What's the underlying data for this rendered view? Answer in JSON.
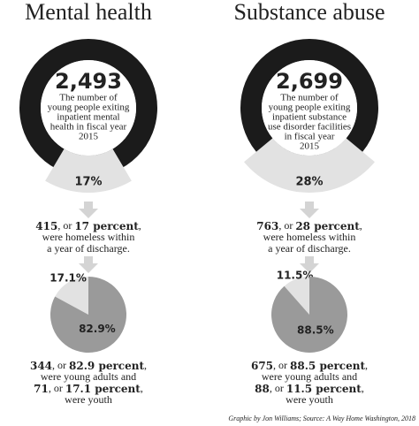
{
  "panels": [
    {
      "title": "Mental health",
      "count": "2,493",
      "description": [
        "The number of",
        "young people exiting",
        "inpatient mental",
        "health in fiscal year",
        "2015"
      ],
      "ring": {
        "type": "donut",
        "values": [
          17
        ],
        "value_labels": [
          "17%"
        ]
      },
      "homeless": [
        [
          {
            "text": "415",
            "bold": true
          },
          {
            "text": ", or ",
            "bold": false
          },
          {
            "text": "17 percent",
            "bold": true
          },
          {
            "text": ",",
            "bold": false
          }
        ],
        [
          {
            "text": "were homeless within",
            "bold": false
          }
        ],
        [
          {
            "text": "a year of discharge.",
            "bold": false
          }
        ]
      ],
      "pie": {
        "type": "pie",
        "values": [
          17.1,
          82.9
        ],
        "value_labels": [
          "17.1%",
          "82.9%"
        ]
      },
      "youth": [
        [
          {
            "text": "344",
            "bold": true
          },
          {
            "text": ", or ",
            "bold": false
          },
          {
            "text": "82.9 percent",
            "bold": true
          },
          {
            "text": ",",
            "bold": false
          }
        ],
        [
          {
            "text": "were young adults and",
            "bold": false
          }
        ],
        [
          {
            "text": "71",
            "bold": true
          },
          {
            "text": ", or ",
            "bold": false
          },
          {
            "text": "17.1 percent",
            "bold": true
          },
          {
            "text": ",",
            "bold": false
          }
        ],
        [
          {
            "text": "were youth",
            "bold": false
          }
        ]
      ]
    },
    {
      "title": "Substance abuse",
      "count": "2,699",
      "description": [
        "The number of",
        "young people exiting",
        "inpatient substance",
        "use disorder facilities",
        "in fiscal year",
        "2015"
      ],
      "ring": {
        "type": "donut",
        "values": [
          28
        ],
        "value_labels": [
          "28%"
        ]
      },
      "homeless": [
        [
          {
            "text": "763",
            "bold": true
          },
          {
            "text": ", or ",
            "bold": false
          },
          {
            "text": "28 percent",
            "bold": true
          },
          {
            "text": ",",
            "bold": false
          }
        ],
        [
          {
            "text": "were homeless within",
            "bold": false
          }
        ],
        [
          {
            "text": "a year of discharge.",
            "bold": false
          }
        ]
      ],
      "pie": {
        "type": "pie",
        "values": [
          11.5,
          88.5
        ],
        "value_labels": [
          "11.5%",
          "88.5%"
        ]
      },
      "youth": [
        [
          {
            "text": "675",
            "bold": true
          },
          {
            "text": ", or ",
            "bold": false
          },
          {
            "text": "88.5 percent",
            "bold": true
          },
          {
            "text": ",",
            "bold": false
          }
        ],
        [
          {
            "text": "were young adults and",
            "bold": false
          }
        ],
        [
          {
            "text": "88",
            "bold": true
          },
          {
            "text": ", or ",
            "bold": false
          },
          {
            "text": "11.5 percent",
            "bold": true
          },
          {
            "text": ",",
            "bold": false
          }
        ],
        [
          {
            "text": "were youth",
            "bold": false
          }
        ]
      ]
    }
  ],
  "credit": "Graphic by Jon Williams; Source: A Way Home Washington, 2018"
}
